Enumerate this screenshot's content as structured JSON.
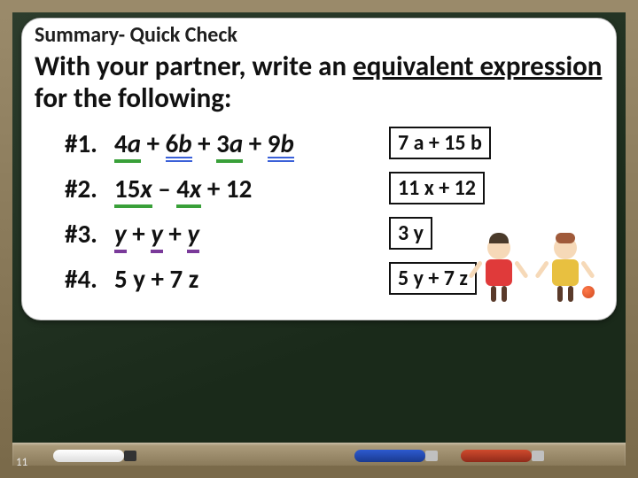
{
  "slide_number": "11",
  "header": "Summary- Quick Check",
  "instruction": {
    "lead": "With your partner, write an ",
    "underlined": "equivalent expression ",
    "tail": "for the following:"
  },
  "problems": [
    {
      "num": "#1.",
      "parts": {
        "a": "4",
        "av": "a",
        "p1": " + ",
        "b": "6",
        "bv": "b",
        "p2": " + ",
        "c": "3",
        "cv": "a",
        "p3": " + ",
        "d": "9",
        "dv": "b"
      },
      "answer": "7 a + 15 b"
    },
    {
      "num": "#2.",
      "parts": {
        "a": "15",
        "av": "x",
        "p1": " – ",
        "b": "4",
        "bv": "x",
        "p2": " + 12"
      },
      "answer": "11 x + 12"
    },
    {
      "num": "#3.",
      "parts": {
        "a": "y",
        "p1": " + ",
        "b": "y",
        "p2": " + ",
        "c": "y"
      },
      "answer": "3 y"
    },
    {
      "num": "#4.",
      "expr_plain": "5 y + 7 z",
      "answer": "5 y + 7 z"
    }
  ],
  "colors": {
    "frame": "#8a7a5a",
    "board": "#243524",
    "card_bg": "#ffffff",
    "text": "#111111",
    "underline_green": "#39a039",
    "underline_blue": "#3a60d8",
    "underline_purple": "#7a3a9a",
    "answer_border": "#111111"
  },
  "fonts": {
    "family": "Calibri",
    "header_size_pt": 18,
    "instr_size_pt": 23,
    "expr_size_pt": 22,
    "answer_size_pt": 18
  }
}
